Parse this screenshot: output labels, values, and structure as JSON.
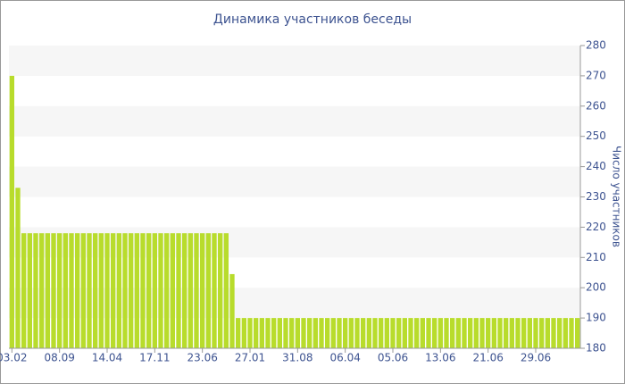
{
  "chart_data": {
    "type": "bar",
    "title": "Динамика участников беседы",
    "y_label": "Число участников",
    "categories": [
      "03.02",
      null,
      null,
      null,
      null,
      null,
      null,
      null,
      "08.09",
      null,
      null,
      null,
      null,
      null,
      null,
      null,
      "14.04",
      null,
      null,
      null,
      null,
      null,
      null,
      null,
      "17.11",
      null,
      null,
      null,
      null,
      null,
      null,
      null,
      "23.06",
      null,
      null,
      null,
      null,
      null,
      null,
      null,
      "27.01",
      null,
      null,
      null,
      null,
      null,
      null,
      null,
      "31.08",
      null,
      null,
      null,
      null,
      null,
      null,
      null,
      "06.04",
      null,
      null,
      null,
      null,
      null,
      null,
      null,
      "05.06",
      null,
      null,
      null,
      null,
      null,
      null,
      null,
      "13.06",
      null,
      null,
      null,
      null,
      null,
      null,
      null,
      "21.06",
      null,
      null,
      null,
      null,
      null,
      null,
      null,
      "29.06",
      null,
      null,
      null,
      null,
      null,
      null,
      null
    ],
    "values": [
      270,
      233,
      218,
      218,
      218,
      218,
      218,
      218,
      218,
      218,
      218,
      218,
      218,
      218,
      218,
      218,
      218,
      218,
      218,
      218,
      218,
      218,
      218,
      218,
      218,
      218,
      218,
      218,
      218,
      218,
      218,
      218,
      218,
      218,
      218,
      218,
      218,
      204.5,
      190,
      190,
      190,
      190,
      190,
      190,
      190,
      190,
      190,
      190,
      190,
      190,
      190,
      190,
      190,
      190,
      190,
      190,
      190,
      190,
      190,
      190,
      190,
      190,
      190,
      190,
      190,
      190,
      190,
      190,
      190,
      190,
      190,
      190,
      190,
      190,
      190,
      190,
      190,
      190,
      190,
      190,
      190,
      190,
      190,
      190,
      190,
      190,
      190,
      190,
      190,
      190,
      190,
      190,
      190,
      190,
      190,
      190
    ],
    "color": "#b8dc2c",
    "ylim": [
      180,
      280
    ],
    "yticks": [
      180,
      190,
      200,
      210,
      220,
      230,
      240,
      250,
      260,
      270,
      280
    ],
    "grid": true,
    "y_axis_side": "right"
  }
}
